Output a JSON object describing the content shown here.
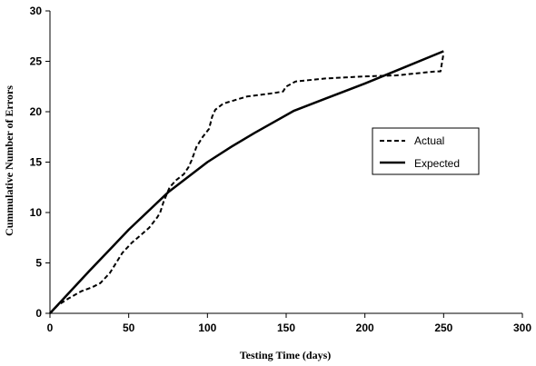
{
  "chart_data": {
    "type": "line",
    "title": "",
    "xlabel": "Testing Time (days)",
    "ylabel": "Cummulative Number of Errors",
    "xlim": [
      0,
      300
    ],
    "ylim": [
      0,
      30
    ],
    "x_ticks": [
      0,
      50,
      100,
      150,
      200,
      250,
      300
    ],
    "y_ticks": [
      0,
      5,
      10,
      15,
      20,
      25,
      30
    ],
    "grid": false,
    "legend_position": "right, middle",
    "series": [
      {
        "name": "Actual",
        "style": "dashed",
        "color": "#000000",
        "points": [
          [
            0,
            0
          ],
          [
            5,
            0.8
          ],
          [
            12,
            1.5
          ],
          [
            20,
            2.2
          ],
          [
            27,
            2.6
          ],
          [
            32,
            3.0
          ],
          [
            38,
            4.0
          ],
          [
            42,
            5.0
          ],
          [
            46,
            6.0
          ],
          [
            52,
            7.0
          ],
          [
            58,
            7.8
          ],
          [
            63,
            8.5
          ],
          [
            68,
            9.5
          ],
          [
            70,
            10.0
          ],
          [
            72,
            11.0
          ],
          [
            76,
            12.5
          ],
          [
            80,
            13.2
          ],
          [
            85,
            13.8
          ],
          [
            88,
            14.5
          ],
          [
            90,
            15.2
          ],
          [
            93,
            16.5
          ],
          [
            97,
            17.5
          ],
          [
            101,
            18.3
          ],
          [
            103,
            19.5
          ],
          [
            105,
            20.2
          ],
          [
            110,
            20.8
          ],
          [
            125,
            21.5
          ],
          [
            140,
            21.8
          ],
          [
            148,
            22.0
          ],
          [
            150,
            22.5
          ],
          [
            156,
            23.0
          ],
          [
            175,
            23.3
          ],
          [
            200,
            23.5
          ],
          [
            220,
            23.6
          ],
          [
            245,
            24.0
          ],
          [
            248,
            24.0
          ],
          [
            250,
            25.8
          ]
        ]
      },
      {
        "name": "Expected",
        "style": "solid",
        "color": "#000000",
        "points": [
          [
            0,
            0
          ],
          [
            25,
            4.2
          ],
          [
            50,
            8.3
          ],
          [
            75,
            12.0
          ],
          [
            100,
            15.0
          ],
          [
            115,
            16.5
          ],
          [
            130,
            17.9
          ],
          [
            155,
            20.1
          ],
          [
            175,
            21.3
          ],
          [
            200,
            22.8
          ],
          [
            225,
            24.4
          ],
          [
            250,
            26.0
          ]
        ]
      }
    ]
  }
}
